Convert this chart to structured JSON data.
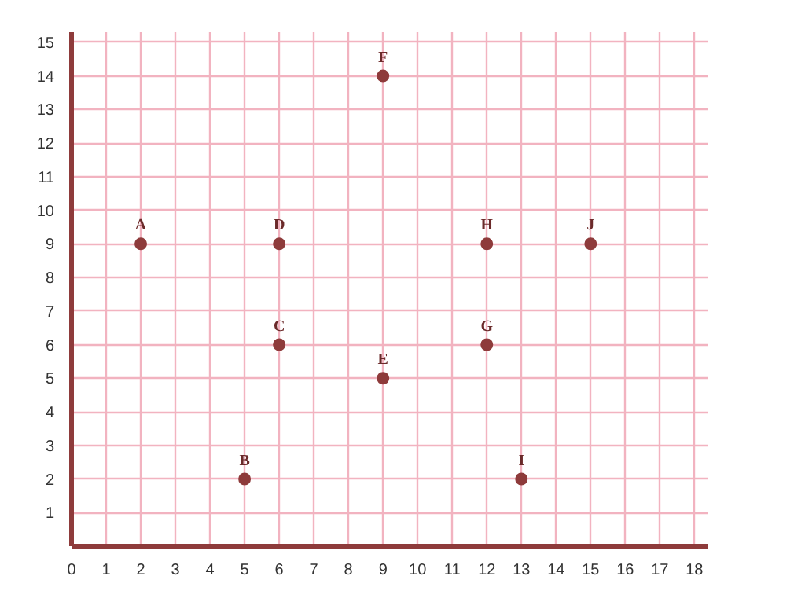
{
  "chart_data": {
    "type": "scatter",
    "x": [
      2,
      5,
      6,
      6,
      9,
      9,
      12,
      12,
      13,
      15
    ],
    "series": [
      {
        "color": "#8e3b3b",
        "values": [
          9,
          2,
          6,
          9,
          5,
          14,
          6,
          9,
          2,
          9
        ]
      }
    ],
    "annotations": [
      {
        "text": "A",
        "x": 2,
        "y": 9
      },
      {
        "text": "B",
        "x": 5,
        "y": 2
      },
      {
        "text": "C",
        "x": 6,
        "y": 6
      },
      {
        "text": "D",
        "x": 6,
        "y": 9
      },
      {
        "text": "E",
        "x": 9,
        "y": 5
      },
      {
        "text": "F",
        "x": 9,
        "y": 14
      },
      {
        "text": "G",
        "x": 12,
        "y": 6
      },
      {
        "text": "H",
        "x": 12,
        "y": 9
      },
      {
        "text": "I",
        "x": 13,
        "y": 2
      },
      {
        "text": "J",
        "x": 15,
        "y": 9
      }
    ],
    "xlim": [
      0,
      18.4
    ],
    "ylim": [
      0,
      15.3
    ],
    "xticks": [
      0,
      1,
      2,
      3,
      4,
      5,
      6,
      7,
      8,
      9,
      10,
      11,
      12,
      13,
      14,
      15,
      16,
      17,
      18
    ],
    "yticks": [
      {
        "value": 0,
        "label": null
      },
      1,
      2,
      3,
      4,
      5,
      6,
      7,
      8,
      9,
      10,
      11,
      12,
      13,
      14,
      15
    ],
    "grid": true,
    "marker": "circle"
  }
}
